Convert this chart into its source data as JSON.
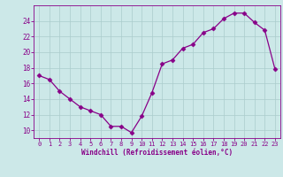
{
  "x": [
    0,
    1,
    2,
    3,
    4,
    5,
    6,
    7,
    8,
    9,
    10,
    11,
    12,
    13,
    14,
    15,
    16,
    17,
    18,
    19,
    20,
    21,
    22,
    23
  ],
  "y": [
    17,
    16.5,
    15,
    14,
    13,
    12.5,
    12,
    10.5,
    10.5,
    9.7,
    11.8,
    14.8,
    18.5,
    19,
    20.5,
    21,
    22.5,
    23,
    24.3,
    25,
    25,
    23.8,
    22.8,
    17.8
  ],
  "line_color": "#880088",
  "marker": "D",
  "marker_size": 2.5,
  "bg_color": "#cce8e8",
  "grid_color": "#aacccc",
  "xlabel": "Windchill (Refroidissement éolien,°C)",
  "xlabel_color": "#880088",
  "tick_color": "#880088",
  "ylim": [
    9,
    26
  ],
  "yticks": [
    10,
    12,
    14,
    16,
    18,
    20,
    22,
    24
  ],
  "xlim": [
    -0.5,
    23.5
  ],
  "xticks": [
    0,
    1,
    2,
    3,
    4,
    5,
    6,
    7,
    8,
    9,
    10,
    11,
    12,
    13,
    14,
    15,
    16,
    17,
    18,
    19,
    20,
    21,
    22,
    23
  ],
  "spine_color": "#880088"
}
